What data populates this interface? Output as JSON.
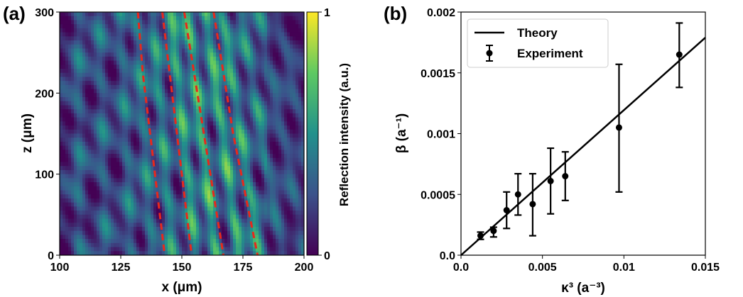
{
  "colors": {
    "theory": "#000000",
    "experiment": "#000000",
    "dashed": "#e8281c",
    "cmap": [
      "#440154",
      "#3b528b",
      "#21918c",
      "#5ec962",
      "#fde725"
    ]
  },
  "chart_data": [
    {
      "panel": "(a)",
      "type": "heatmap",
      "title": "",
      "xlabel": "x (μm)",
      "ylabel": "z (μm)",
      "xlim": [
        100,
        200
      ],
      "ylim": [
        0,
        300
      ],
      "x_ticks": [
        "100",
        "125",
        "150",
        "175",
        "200"
      ],
      "x_tick_values": [
        100,
        125,
        150,
        175,
        200
      ],
      "y_ticks": [
        "0",
        "100",
        "200",
        "300"
      ],
      "y_tick_values": [
        0,
        100,
        200,
        300
      ],
      "colorbar": {
        "label": "Reflection intensity (a.u.)",
        "min": 0,
        "max": 1,
        "ticks": [
          "0",
          "1"
        ]
      },
      "dashed_curves": [
        {
          "name": "guide-1",
          "x": [
            132,
            134,
            137,
            140,
            143
          ],
          "z": [
            300,
            225,
            150,
            75,
            0
          ]
        },
        {
          "name": "guide-2",
          "x": [
            142,
            145,
            148,
            151,
            154
          ],
          "z": [
            300,
            225,
            150,
            75,
            0
          ]
        },
        {
          "name": "guide-3",
          "x": [
            151,
            155,
            159,
            163,
            167
          ],
          "z": [
            300,
            225,
            150,
            75,
            0
          ]
        },
        {
          "name": "guide-4",
          "x": [
            163,
            167,
            171,
            176,
            181
          ],
          "z": [
            300,
            225,
            150,
            75,
            0
          ]
        }
      ]
    },
    {
      "panel": "(b)",
      "type": "scatter",
      "xlabel": "κ³ (a⁻³)",
      "ylabel": "β (a⁻¹)",
      "xlim": [
        0,
        0.015
      ],
      "ylim": [
        0,
        0.002
      ],
      "x_ticks": [
        "0.0",
        "0.005",
        "0.01",
        "0.015"
      ],
      "x_tick_values": [
        0,
        0.005,
        0.01,
        0.015
      ],
      "y_ticks": [
        "0.0",
        "0.0005",
        "0.001",
        "0.0015",
        "0.002"
      ],
      "y_tick_values": [
        0,
        0.0005,
        0.001,
        0.0015,
        0.002
      ],
      "legend": {
        "position": "upper-left",
        "entries": [
          "Theory",
          "Experiment"
        ]
      },
      "series": [
        {
          "name": "Theory",
          "kind": "line",
          "x": [
            0,
            0.015
          ],
          "y": [
            0,
            0.00179
          ]
        },
        {
          "name": "Experiment",
          "kind": "errorbar",
          "x": [
            0.0012,
            0.002,
            0.0028,
            0.0035,
            0.0044,
            0.0055,
            0.0064,
            0.0097,
            0.0134
          ],
          "y": [
            0.00016,
            0.0002,
            0.00037,
            0.0005,
            0.00042,
            0.00061,
            0.00065,
            0.00105,
            0.00165
          ],
          "yerr_low": [
            3e-05,
            5e-05,
            0.00015,
            0.00017,
            0.00026,
            0.00027,
            0.0002,
            0.00053,
            0.00027
          ],
          "yerr_high": [
            3e-05,
            3e-05,
            0.00015,
            0.00017,
            0.00025,
            0.00027,
            0.0002,
            0.00052,
            0.00026
          ]
        }
      ]
    }
  ]
}
